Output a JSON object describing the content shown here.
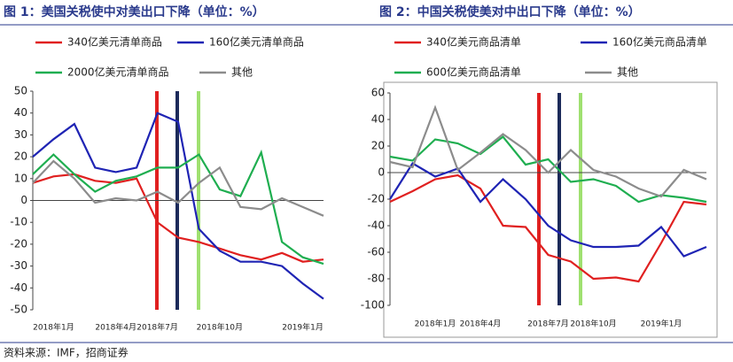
{
  "chart_data": [
    {
      "type": "line",
      "title": "图 1：美国关税使中对美出口下降（单位：%）",
      "categories": [
        null,
        "2018年1月",
        null,
        null,
        "2018年4月",
        null,
        "2018年7月",
        null,
        null,
        "2018年10月",
        null,
        null,
        null,
        "2019年1月",
        null
      ],
      "ylim": [
        -50,
        50
      ],
      "yticks": [
        -50,
        -40,
        -30,
        -20,
        -10,
        0,
        10,
        20,
        30,
        40,
        50
      ],
      "series": [
        {
          "name": "340亿美元清单商品",
          "color": "#e02020",
          "values": [
            8,
            11,
            12,
            9,
            8,
            10,
            -10,
            -17,
            -19,
            -22,
            -25,
            -27,
            -24,
            -28,
            -27
          ]
        },
        {
          "name": "160亿美元清单商品",
          "color": "#1f24b4",
          "values": [
            20,
            28,
            35,
            15,
            13,
            15,
            40,
            36,
            -13,
            -23,
            -28,
            -28,
            -30,
            -38,
            -45
          ]
        },
        {
          "name": "2000亿美元清单商品",
          "color": "#1fae50",
          "values": [
            12,
            21,
            12,
            4,
            9,
            11,
            15,
            15,
            21,
            5,
            2,
            22,
            -19,
            -26,
            -29
          ]
        },
        {
          "name": "其他",
          "color": "#8c8c8c",
          "values": [
            8,
            18,
            10,
            -1,
            1,
            0,
            4,
            -1,
            8,
            15,
            -3,
            -4,
            1,
            -3,
            -7
          ]
        }
      ]
    },
    {
      "type": "line",
      "title": "图 2：中国关税使美对中出口下降（单位：%）",
      "categories": [
        null,
        null,
        "2018年1月",
        null,
        "2018年4月",
        null,
        null,
        "2018年7月",
        null,
        "2018年10月",
        null,
        null,
        "2019年1月",
        null,
        null
      ],
      "ylim": [
        -100,
        60
      ],
      "yticks": [
        -100,
        -80,
        -60,
        -40,
        -20,
        0,
        20,
        40,
        60
      ],
      "series": [
        {
          "name": "340亿美元商品清单",
          "color": "#e02020",
          "values": [
            -22,
            -14,
            -5,
            -2,
            -12,
            -40,
            -41,
            -62,
            -67,
            -80,
            -79,
            -82,
            -53,
            -22,
            -24
          ]
        },
        {
          "name": "160亿美元商品清单",
          "color": "#1f24b4",
          "values": [
            -20,
            7,
            -3,
            3,
            -22,
            -5,
            -20,
            -40,
            -51,
            -56,
            -56,
            -55,
            -41,
            -63,
            -56
          ]
        },
        {
          "name": "600亿美元商品清单",
          "color": "#1fae50",
          "values": [
            12,
            9,
            25,
            22,
            14,
            27,
            6,
            10,
            -7,
            -5,
            -10,
            -22,
            -17,
            -19,
            -22
          ]
        },
        {
          "name": "其他",
          "color": "#8c8c8c",
          "values": [
            8,
            4,
            49,
            2,
            15,
            29,
            17,
            0,
            17,
            2,
            -3,
            -12,
            -18,
            2,
            -5
          ]
        }
      ]
    }
  ],
  "source": "资料来源：IMF，招商证券"
}
